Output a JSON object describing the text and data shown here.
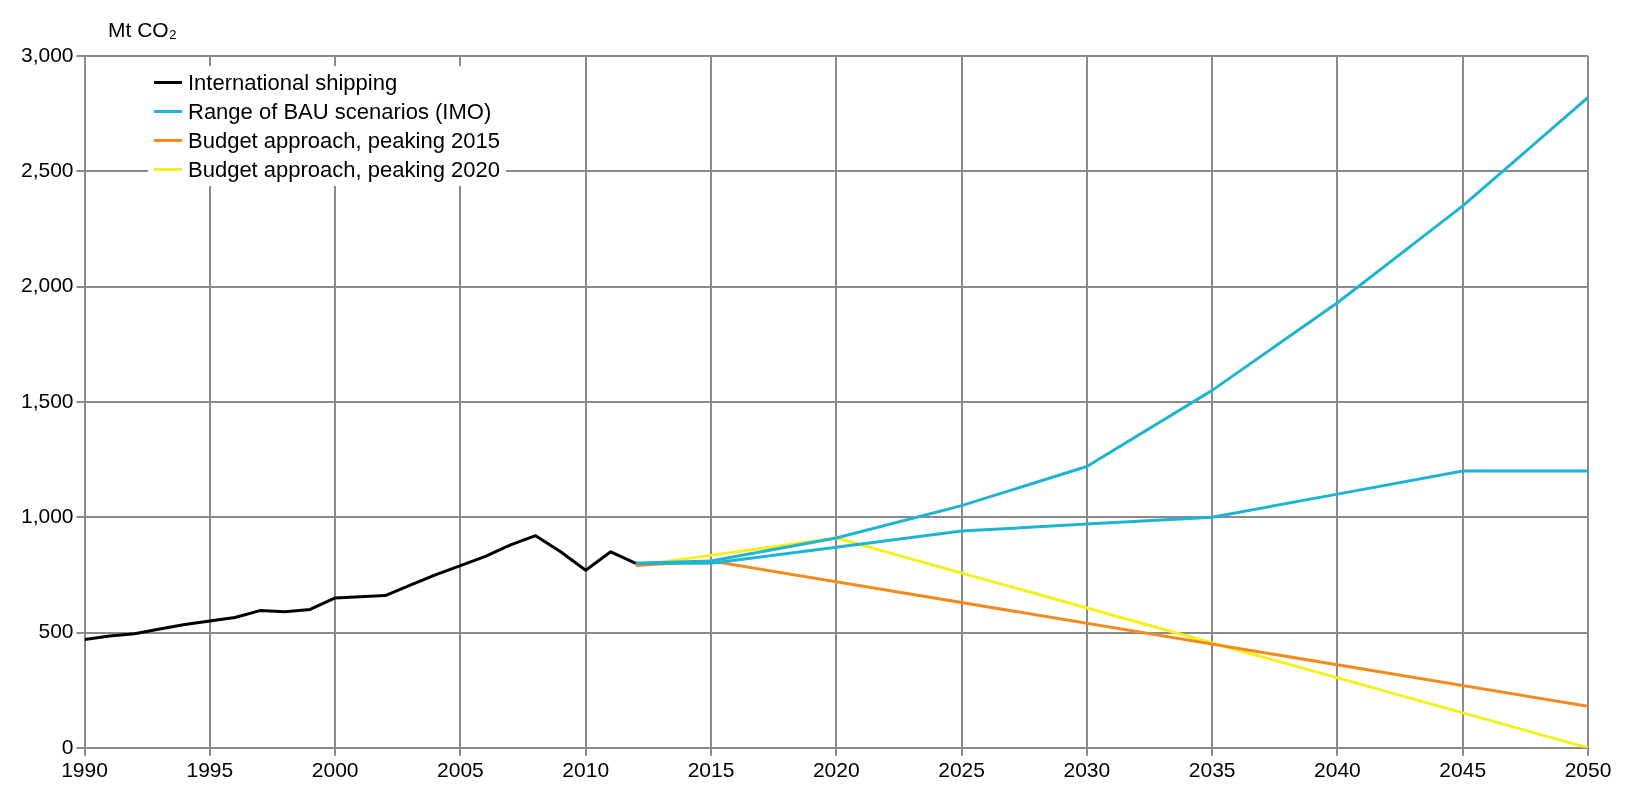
{
  "chart_data": {
    "type": "line",
    "ylabel": "Mt CO₂",
    "xlim": [
      1990,
      2050
    ],
    "xticks": [
      1990,
      1995,
      2000,
      2005,
      2010,
      2015,
      2020,
      2025,
      2030,
      2035,
      2040,
      2045,
      2050
    ],
    "ylim": [
      0,
      3000
    ],
    "yticks": [
      0,
      500,
      {
        "value": 1000,
        "label": "1,000"
      },
      {
        "value": 1500,
        "label": "1,500"
      },
      {
        "value": 2000,
        "label": "2,000"
      },
      {
        "value": 2500,
        "label": "2,500"
      },
      {
        "value": 3000,
        "label": "3,000"
      }
    ],
    "grid": true,
    "legend": "top left",
    "marker": "none",
    "line_style": "solid",
    "series": [
      {
        "name": "International shipping",
        "color": "#000000",
        "x": [
          1990,
          1991,
          1992,
          1993,
          1994,
          1995,
          1996,
          1997,
          1998,
          1999,
          2000,
          2001,
          2002,
          2003,
          2004,
          2005,
          2006,
          2007,
          2008,
          2009,
          2010,
          2011,
          2012
        ],
        "values": [
          470,
          485,
          495,
          515,
          535,
          550,
          565,
          595,
          590,
          600,
          650,
          655,
          660,
          705,
          750,
          790,
          830,
          880,
          920,
          850,
          770,
          850,
          800
        ]
      },
      {
        "name": "Range of BAU scenarios (IMO)",
        "color": "#1fb4d2",
        "x": [
          2012,
          2015,
          2020,
          2025,
          2030,
          2035,
          2040,
          2045,
          2050
        ],
        "values": [
          800,
          810,
          910,
          1050,
          1220,
          1550,
          1930,
          2350,
          2820
        ]
      },
      {
        "color": "#1fb4d2",
        "x": [
          2012,
          2015,
          2020,
          2025,
          2030,
          2035,
          2040,
          2045,
          2050
        ],
        "values": [
          800,
          800,
          870,
          940,
          970,
          1000,
          1100,
          1200,
          1200
        ]
      },
      {
        "name": "Budget approach, peaking 2015",
        "color": "#f08c1e",
        "x": [
          2012,
          2015,
          2050
        ],
        "values": [
          790,
          810,
          180
        ]
      },
      {
        "name": "Budget approach, peaking 2020",
        "color": "#f5f01e",
        "x": [
          2012,
          2020,
          2050
        ],
        "values": [
          790,
          910,
          0
        ]
      }
    ]
  }
}
